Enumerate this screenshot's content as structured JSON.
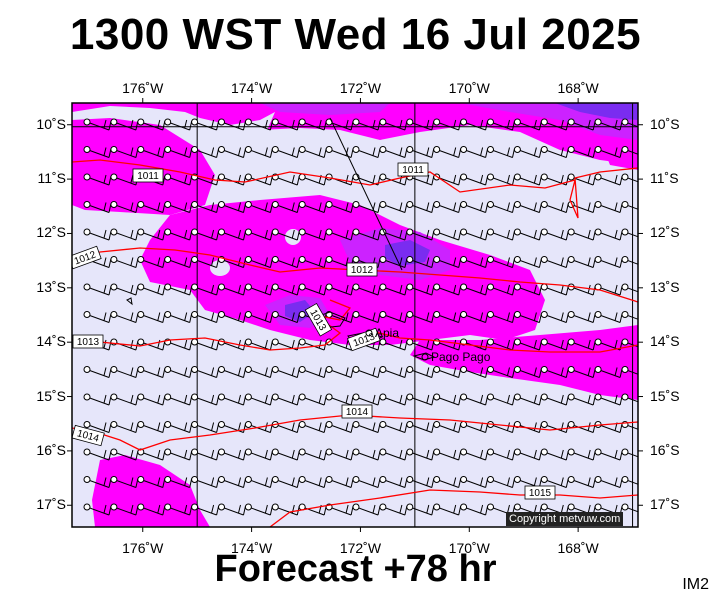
{
  "title": "1300 WST Wed 16 Jul 2025",
  "footer": "Forecast +78 hr",
  "corner_label": "IM2",
  "copyright": "Copyright metvuw.com",
  "map": {
    "lon_ticks": [
      {
        "lon": -176,
        "label": "176˚W"
      },
      {
        "lon": -174,
        "label": "174˚W"
      },
      {
        "lon": -172,
        "label": "172˚W"
      },
      {
        "lon": -170,
        "label": "170˚W"
      },
      {
        "lon": -168,
        "label": "168˚W"
      }
    ],
    "lat_ticks": [
      {
        "lat": -10,
        "label": "10˚S"
      },
      {
        "lat": -11,
        "label": "11˚S"
      },
      {
        "lat": -12,
        "label": "12˚S"
      },
      {
        "lat": -13,
        "label": "13˚S"
      },
      {
        "lat": -14,
        "label": "14˚S"
      },
      {
        "lat": -15,
        "label": "15˚S"
      },
      {
        "lat": -16,
        "label": "16˚S"
      },
      {
        "lat": -17,
        "label": "17˚S"
      }
    ],
    "lon_range": [
      -177.3,
      -166.9
    ],
    "lat_range": [
      -17.4,
      -9.6
    ],
    "isobar_labels": [
      "1011",
      "1011",
      "1012",
      "1012",
      "1013",
      "1013",
      "1013",
      "1014",
      "1014",
      "1015"
    ],
    "places": [
      {
        "name": "Apia"
      },
      {
        "name": "Pago Pago"
      }
    ],
    "colors": {
      "background": "#e6e6fa",
      "rain_light": "#ff00ff",
      "rain_mid": "#cc00ff",
      "rain_heavy": "#7a2cf0",
      "isobar": "#ff0000"
    }
  }
}
